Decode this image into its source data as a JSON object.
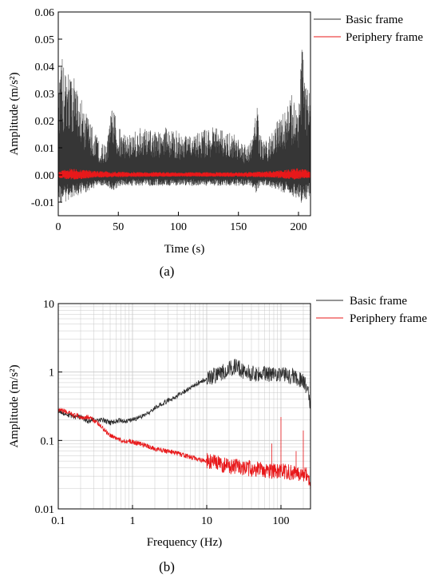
{
  "colors": {
    "basic": "#2b2b2b",
    "periphery": "#e8181a",
    "grid": "#c8c8c8"
  },
  "chart_data": [
    {
      "type": "line",
      "panel_label": "(a)",
      "xlabel": "Time (s)",
      "ylabel": "Amplitude (m/s²)",
      "xlim": [
        0,
        210
      ],
      "ylim": [
        -0.015,
        0.06
      ],
      "x_ticks": [
        0,
        50,
        100,
        150,
        200
      ],
      "x_tick_labels": [
        "0",
        "50",
        "100",
        "150",
        "200"
      ],
      "y_ticks": [
        -0.01,
        0.0,
        0.01,
        0.02,
        0.03,
        0.04,
        0.05,
        0.06
      ],
      "y_tick_labels": [
        "-0.01",
        "0.00",
        "0.01",
        "0.02",
        "0.03",
        "0.04",
        "0.05",
        "0.06"
      ],
      "legend_position": "top-right",
      "series": [
        {
          "name": "Basic frame",
          "color": "#2b2b2b",
          "x": [
            0,
            3,
            6,
            10,
            15,
            20,
            25,
            30,
            35,
            40,
            45,
            50,
            55,
            60,
            70,
            80,
            90,
            100,
            110,
            120,
            130,
            140,
            150,
            155,
            160,
            163,
            165,
            168,
            172,
            180,
            185,
            190,
            195,
            200,
            203,
            205,
            207,
            210
          ],
          "y_max": [
            0.03,
            0.043,
            0.041,
            0.039,
            0.034,
            0.028,
            0.022,
            0.016,
            0.012,
            0.011,
            0.026,
            0.018,
            0.016,
            0.015,
            0.018,
            0.016,
            0.018,
            0.016,
            0.014,
            0.017,
            0.018,
            0.016,
            0.015,
            0.012,
            0.012,
            0.018,
            0.029,
            0.015,
            0.012,
            0.018,
            0.022,
            0.026,
            0.03,
            0.028,
            0.052,
            0.034,
            0.037,
            0.029
          ],
          "y_min": [
            -0.01,
            -0.011,
            -0.01,
            -0.009,
            -0.008,
            -0.007,
            -0.006,
            -0.005,
            -0.004,
            -0.004,
            -0.006,
            -0.005,
            -0.004,
            -0.004,
            -0.004,
            -0.004,
            -0.004,
            -0.004,
            -0.004,
            -0.004,
            -0.004,
            -0.004,
            -0.004,
            -0.004,
            -0.004,
            -0.005,
            -0.007,
            -0.004,
            -0.004,
            -0.005,
            -0.006,
            -0.007,
            -0.008,
            -0.009,
            -0.011,
            -0.009,
            -0.009,
            -0.007
          ]
        },
        {
          "name": "Periphery frame",
          "color": "#e8181a",
          "x": [
            0,
            5,
            10,
            20,
            30,
            50,
            100,
            150,
            180,
            190,
            200,
            205,
            210
          ],
          "y_max": [
            0.001,
            0.002,
            0.0025,
            0.002,
            0.0015,
            0.0012,
            0.001,
            0.001,
            0.0015,
            0.002,
            0.0025,
            0.0022,
            0.0015
          ],
          "y_min": [
            -0.001,
            -0.0015,
            -0.0018,
            -0.0015,
            -0.001,
            -0.0008,
            -0.0006,
            -0.0007,
            -0.001,
            -0.0015,
            -0.0018,
            -0.0015,
            -0.001
          ]
        }
      ]
    },
    {
      "type": "line",
      "panel_label": "(b)",
      "xlabel": "Frequency (Hz)",
      "ylabel": "Amplitude (m/s²)",
      "xscale": "log",
      "yscale": "log",
      "xlim": [
        0.1,
        250
      ],
      "ylim": [
        0.01,
        10
      ],
      "x_ticks": [
        0.1,
        1,
        10,
        100
      ],
      "x_tick_labels": [
        "0.1",
        "1",
        "10",
        "100"
      ],
      "y_ticks": [
        0.01,
        0.1,
        1,
        10
      ],
      "y_tick_labels": [
        "0.01",
        "0.1",
        "1",
        "10"
      ],
      "grid": true,
      "legend_position": "top-right",
      "series": [
        {
          "name": "Basic frame",
          "color": "#2b2b2b",
          "x": [
            0.1,
            0.13,
            0.17,
            0.2,
            0.25,
            0.3,
            0.4,
            0.5,
            0.6,
            0.7,
            0.8,
            1.0,
            1.3,
            1.7,
            2,
            3,
            4,
            5,
            7,
            10,
            15,
            20,
            25,
            30,
            40,
            50,
            70,
            100,
            150,
            200,
            230,
            250
          ],
          "y": [
            0.27,
            0.24,
            0.22,
            0.22,
            0.19,
            0.2,
            0.2,
            0.18,
            0.19,
            0.2,
            0.19,
            0.2,
            0.22,
            0.26,
            0.3,
            0.38,
            0.45,
            0.52,
            0.65,
            0.8,
            0.95,
            1.1,
            1.2,
            1.05,
            0.95,
            0.95,
            0.95,
            0.95,
            0.85,
            0.75,
            0.55,
            0.3
          ]
        },
        {
          "name": "Periphery frame",
          "color": "#e8181a",
          "x": [
            0.1,
            0.12,
            0.15,
            0.2,
            0.25,
            0.3,
            0.4,
            0.5,
            0.7,
            1.0,
            1.5,
            2,
            3,
            4,
            5,
            7,
            10,
            15,
            20,
            30,
            50,
            70,
            100,
            150,
            200,
            230,
            250
          ],
          "y": [
            0.27,
            0.27,
            0.24,
            0.22,
            0.22,
            0.2,
            0.15,
            0.12,
            0.1,
            0.095,
            0.085,
            0.075,
            0.07,
            0.065,
            0.06,
            0.055,
            0.05,
            0.045,
            0.042,
            0.04,
            0.038,
            0.036,
            0.035,
            0.034,
            0.033,
            0.03,
            0.02
          ]
        }
      ]
    }
  ]
}
